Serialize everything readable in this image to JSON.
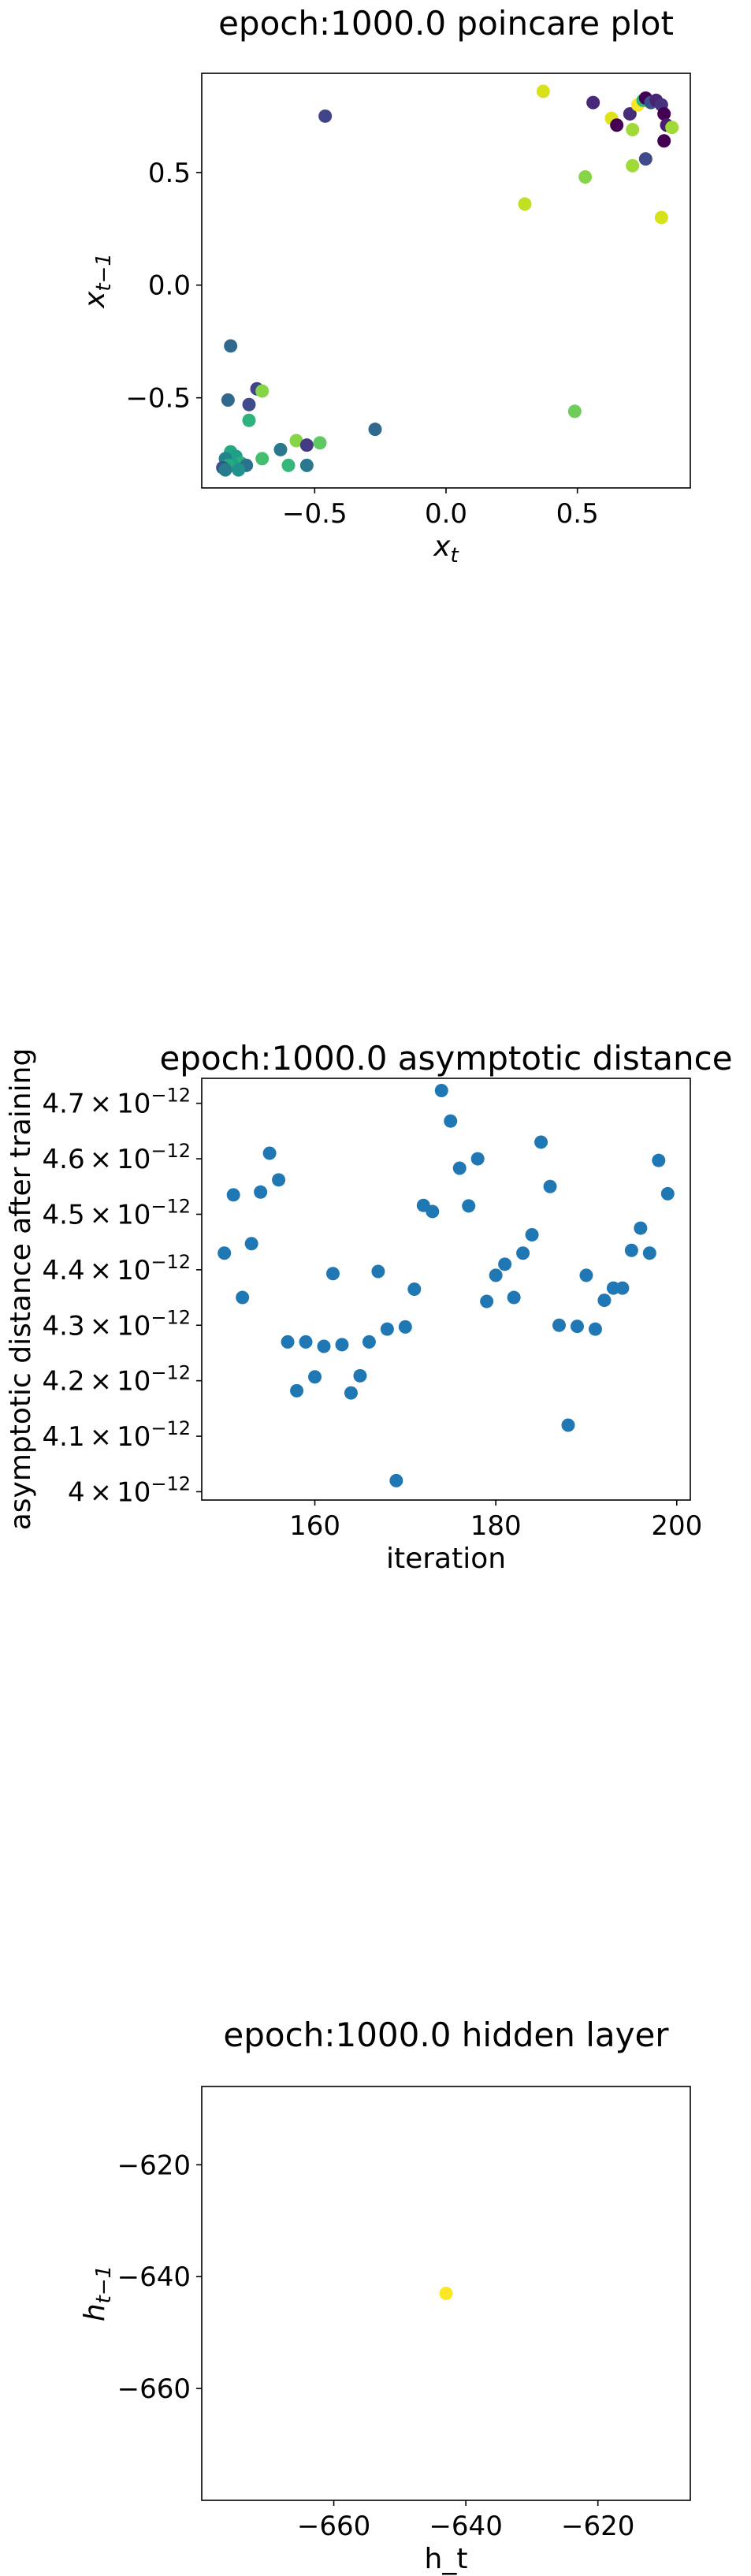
{
  "chart_data": [
    {
      "type": "scatter",
      "title": "epoch:1000.0 poincare plot",
      "xlabel": "x_t",
      "ylabel": "x_{t-1}",
      "xlim": [
        -0.93,
        0.93
      ],
      "ylim": [
        -0.9,
        0.94
      ],
      "xticks": [
        -0.5,
        0.0,
        0.5
      ],
      "xtick_labels": [
        "−0.5",
        "0.0",
        "0.5"
      ],
      "yticks": [
        -0.5,
        0.0,
        0.5
      ],
      "ytick_labels": [
        "−0.5",
        "0.0",
        "0.5"
      ],
      "grid": false,
      "points": [
        {
          "x": 0.37,
          "y": 0.86,
          "color": "#d8e219"
        },
        {
          "x": -0.46,
          "y": 0.75,
          "color": "#414487"
        },
        {
          "x": 0.56,
          "y": 0.81,
          "color": "#482878"
        },
        {
          "x": 0.63,
          "y": 0.74,
          "color": "#dde318"
        },
        {
          "x": 0.65,
          "y": 0.71,
          "color": "#440154"
        },
        {
          "x": 0.7,
          "y": 0.76,
          "color": "#472c7a"
        },
        {
          "x": 0.71,
          "y": 0.69,
          "color": "#a0da39"
        },
        {
          "x": 0.73,
          "y": 0.8,
          "color": "#fde725"
        },
        {
          "x": 0.75,
          "y": 0.82,
          "color": "#35b779"
        },
        {
          "x": 0.76,
          "y": 0.83,
          "color": "#440154"
        },
        {
          "x": 0.78,
          "y": 0.81,
          "color": "#3b528b"
        },
        {
          "x": 0.8,
          "y": 0.82,
          "color": "#482475"
        },
        {
          "x": 0.82,
          "y": 0.8,
          "color": "#46327e"
        },
        {
          "x": 0.83,
          "y": 0.76,
          "color": "#440154"
        },
        {
          "x": 0.84,
          "y": 0.71,
          "color": "#481f70"
        },
        {
          "x": 0.86,
          "y": 0.7,
          "color": "#a0da39"
        },
        {
          "x": 0.83,
          "y": 0.64,
          "color": "#440154"
        },
        {
          "x": 0.76,
          "y": 0.56,
          "color": "#3e4a89"
        },
        {
          "x": 0.71,
          "y": 0.53,
          "color": "#a0da39"
        },
        {
          "x": 0.53,
          "y": 0.48,
          "color": "#86d549"
        },
        {
          "x": 0.3,
          "y": 0.36,
          "color": "#c2df23"
        },
        {
          "x": 0.82,
          "y": 0.3,
          "color": "#d8e219"
        },
        {
          "x": -0.82,
          "y": -0.27,
          "color": "#31688e"
        },
        {
          "x": -0.83,
          "y": -0.51,
          "color": "#31688e"
        },
        {
          "x": -0.72,
          "y": -0.46,
          "color": "#414487"
        },
        {
          "x": -0.7,
          "y": -0.47,
          "color": "#86d549"
        },
        {
          "x": -0.75,
          "y": -0.53,
          "color": "#3e4a89"
        },
        {
          "x": -0.75,
          "y": -0.6,
          "color": "#2db27d"
        },
        {
          "x": -0.27,
          "y": -0.64,
          "color": "#31688e"
        },
        {
          "x": 0.49,
          "y": -0.56,
          "color": "#6ece58"
        },
        {
          "x": -0.57,
          "y": -0.69,
          "color": "#86d549"
        },
        {
          "x": -0.48,
          "y": -0.7,
          "color": "#5ec962"
        },
        {
          "x": -0.53,
          "y": -0.71,
          "color": "#443983"
        },
        {
          "x": -0.63,
          "y": -0.73,
          "color": "#2a788e"
        },
        {
          "x": -0.82,
          "y": -0.74,
          "color": "#22a884"
        },
        {
          "x": -0.8,
          "y": -0.76,
          "color": "#1f9e89"
        },
        {
          "x": -0.84,
          "y": -0.77,
          "color": "#26828e"
        },
        {
          "x": -0.78,
          "y": -0.79,
          "color": "#2ab07f"
        },
        {
          "x": -0.7,
          "y": -0.77,
          "color": "#44bf70"
        },
        {
          "x": -0.81,
          "y": -0.8,
          "color": "#1fa188"
        },
        {
          "x": -0.83,
          "y": -0.8,
          "color": "#25ab82"
        },
        {
          "x": -0.85,
          "y": -0.81,
          "color": "#3b528b"
        },
        {
          "x": -0.76,
          "y": -0.8,
          "color": "#2c728e"
        },
        {
          "x": -0.6,
          "y": -0.8,
          "color": "#35b779"
        },
        {
          "x": -0.53,
          "y": -0.8,
          "color": "#2a788e"
        },
        {
          "x": -0.79,
          "y": -0.82,
          "color": "#21918c"
        },
        {
          "x": -0.84,
          "y": -0.82,
          "color": "#287c8e"
        }
      ]
    },
    {
      "type": "scatter",
      "title": "epoch:1000.0 asymptotic distance",
      "xlabel": "iteration",
      "ylabel": "asymptotic distance after training",
      "xlim": [
        147.5,
        201.5
      ],
      "ylim": [
        3.985e-12,
        4.745e-12
      ],
      "xticks": [
        160,
        180,
        200
      ],
      "xtick_labels": [
        "160",
        "180",
        "200"
      ],
      "yticks": [
        4e-12,
        4.1e-12,
        4.2e-12,
        4.3e-12,
        4.4e-12,
        4.5e-12,
        4.6e-12,
        4.7e-12
      ],
      "ytick_mantissas": [
        "4",
        "4.1",
        "4.2",
        "4.3",
        "4.4",
        "4.5",
        "4.6",
        "4.7"
      ],
      "ytick_base": "10",
      "ytick_exponent": "−12",
      "ytick_times": "×",
      "grid": false,
      "color": "#1f77b4",
      "x": [
        150,
        151,
        152,
        153,
        154,
        155,
        156,
        157,
        158,
        159,
        160,
        161,
        162,
        163,
        164,
        165,
        166,
        167,
        168,
        169,
        170,
        171,
        172,
        173,
        174,
        175,
        176,
        177,
        178,
        179,
        180,
        181,
        182,
        183,
        184,
        185,
        186,
        187,
        188,
        189,
        190,
        191,
        192,
        193,
        194,
        195,
        196,
        197,
        198,
        199
      ],
      "y": [
        4.43e-12,
        4.535e-12,
        4.35e-12,
        4.447e-12,
        4.54e-12,
        4.61e-12,
        4.562e-12,
        4.27e-12,
        4.182e-12,
        4.27e-12,
        4.207e-12,
        4.262e-12,
        4.393e-12,
        4.265e-12,
        4.178e-12,
        4.209e-12,
        4.27e-12,
        4.397e-12,
        4.293e-12,
        4.02e-12,
        4.297e-12,
        4.365e-12,
        4.516e-12,
        4.505e-12,
        4.723e-12,
        4.668e-12,
        4.583e-12,
        4.515e-12,
        4.6e-12,
        4.343e-12,
        4.39e-12,
        4.41e-12,
        4.35e-12,
        4.43e-12,
        4.463e-12,
        4.63e-12,
        4.55e-12,
        4.3e-12,
        4.12e-12,
        4.298e-12,
        4.39e-12,
        4.293e-12,
        4.345e-12,
        4.367e-12,
        4.367e-12,
        4.435e-12,
        4.475e-12,
        4.43e-12,
        4.597e-12,
        4.537e-12
      ]
    },
    {
      "type": "scatter",
      "title": "epoch:1000.0 hidden layer",
      "xlabel": "h_t",
      "ylabel": "h_{t-1}",
      "xlim": [
        -680,
        -606
      ],
      "ylim": [
        -680,
        -606
      ],
      "xticks": [
        -660,
        -640,
        -620
      ],
      "xtick_labels": [
        "−660",
        "−640",
        "−620"
      ],
      "yticks": [
        -660,
        -640,
        -620
      ],
      "ytick_labels": [
        "−660",
        "−640",
        "−620"
      ],
      "grid": false,
      "points": [
        {
          "x": -643,
          "y": -643,
          "color": "#fde725"
        }
      ]
    }
  ]
}
